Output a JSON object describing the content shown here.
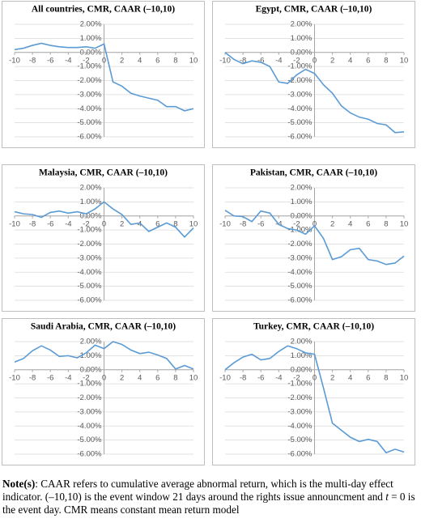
{
  "chart_data": [
    {
      "type": "line",
      "title": "All countries, CMR, CAAR (–10,10)",
      "color": "#5b9bd5",
      "x": [
        -10,
        -9,
        -8,
        -7,
        -6,
        -5,
        -4,
        -3,
        -2,
        -1,
        0,
        1,
        2,
        3,
        4,
        5,
        6,
        7,
        8,
        9,
        10
      ],
      "values": [
        0.2,
        0.3,
        0.5,
        0.65,
        0.5,
        0.4,
        0.35,
        0.35,
        0.4,
        0.3,
        0.6,
        -2.1,
        -2.4,
        -2.9,
        -3.1,
        -3.25,
        -3.4,
        -3.85,
        -3.85,
        -4.15,
        -4.0
      ],
      "xlim": [
        -10,
        10
      ],
      "xticks": [
        -10,
        -8,
        -6,
        -4,
        -2,
        0,
        2,
        4,
        6,
        8,
        10
      ],
      "ylim": [
        -6,
        2
      ],
      "yticks": [
        {
          "value": 2,
          "label": "2.00%"
        },
        {
          "value": 1,
          "label": "1.00%"
        },
        {
          "value": 0,
          "label": "0.00%"
        },
        {
          "value": -1,
          "label": "-1.00%"
        },
        {
          "value": -2,
          "label": "-2.00%"
        },
        {
          "value": -3,
          "label": "-3.00%"
        },
        {
          "value": -4,
          "label": "-4.00%"
        },
        {
          "value": -5,
          "label": "-5.00%"
        },
        {
          "value": -6,
          "label": "-6.00%"
        }
      ],
      "grid": true
    },
    {
      "type": "line",
      "title": "Egypt, CMR, CAAR (–10,10)",
      "color": "#5b9bd5",
      "x": [
        -10,
        -9,
        -8,
        -7,
        -6,
        -5,
        -4,
        -3,
        -2,
        -1,
        0,
        1,
        2,
        3,
        4,
        5,
        6,
        7,
        8,
        9,
        10
      ],
      "values": [
        0.0,
        -0.5,
        -0.8,
        -0.6,
        -0.7,
        -1.0,
        -2.1,
        -2.2,
        -1.6,
        -1.2,
        -1.5,
        -2.3,
        -2.9,
        -3.8,
        -4.3,
        -4.6,
        -4.75,
        -5.05,
        -5.15,
        -5.7,
        -5.65
      ],
      "xlim": [
        -10,
        10
      ],
      "xticks": [
        -10,
        -8,
        -6,
        -4,
        -2,
        0,
        2,
        4,
        6,
        8,
        10
      ],
      "ylim": [
        -6,
        2
      ],
      "yticks": [
        {
          "value": 2,
          "label": "2.00%"
        },
        {
          "value": 1,
          "label": "1.00%"
        },
        {
          "value": 0,
          "label": "0.00%"
        },
        {
          "value": -1,
          "label": "-1.00%"
        },
        {
          "value": -2,
          "label": "-2.00%"
        },
        {
          "value": -3,
          "label": "-3.00%"
        },
        {
          "value": -4,
          "label": "-4.00%"
        },
        {
          "value": -5,
          "label": "-5.00%"
        },
        {
          "value": -6,
          "label": "-6.00%"
        }
      ],
      "grid": true
    },
    {
      "type": "line",
      "title": "Malaysia, CMR, CAAR (–10,10)",
      "color": "#5b9bd5",
      "x": [
        -10,
        -9,
        -8,
        -7,
        -6,
        -5,
        -4,
        -3,
        -2,
        -1,
        0,
        1,
        2,
        3,
        4,
        5,
        6,
        7,
        8,
        9,
        10
      ],
      "values": [
        0.3,
        0.15,
        0.1,
        -0.1,
        0.25,
        0.35,
        0.2,
        0.3,
        0.15,
        0.5,
        1.0,
        0.5,
        0.1,
        -0.6,
        -0.5,
        -1.1,
        -0.8,
        -0.5,
        -0.8,
        -1.5,
        -0.85
      ],
      "xlim": [
        -10,
        10
      ],
      "xticks": [
        -10,
        -8,
        -6,
        -4,
        -2,
        0,
        2,
        4,
        6,
        8,
        10
      ],
      "ylim": [
        -6,
        2
      ],
      "yticks": [
        {
          "value": 2,
          "label": "2.00%"
        },
        {
          "value": 1,
          "label": "1.00%"
        },
        {
          "value": 0,
          "label": "0.00%"
        },
        {
          "value": -1,
          "label": "-1.00%"
        },
        {
          "value": -2,
          "label": "-2.00%"
        },
        {
          "value": -3,
          "label": "-3.00%"
        },
        {
          "value": -4,
          "label": "-4.00%"
        },
        {
          "value": -5,
          "label": "-5.00%"
        },
        {
          "value": -6,
          "label": "-6.00%"
        }
      ],
      "grid": true
    },
    {
      "type": "line",
      "title": "Pakistan, CMR, CAAR (–10,10)",
      "color": "#5b9bd5",
      "x": [
        -10,
        -9,
        -8,
        -7,
        -6,
        -5,
        -4,
        -3,
        -2,
        -1,
        0,
        1,
        2,
        3,
        4,
        5,
        6,
        7,
        8,
        9,
        10
      ],
      "values": [
        0.4,
        0.0,
        -0.05,
        -0.4,
        0.35,
        0.2,
        -0.6,
        -0.9,
        -1.0,
        -1.3,
        -0.7,
        -1.6,
        -3.1,
        -2.9,
        -2.4,
        -2.3,
        -3.1,
        -3.2,
        -3.45,
        -3.35,
        -2.85
      ],
      "xlim": [
        -10,
        10
      ],
      "xticks": [
        -10,
        -8,
        -6,
        -4,
        -2,
        0,
        2,
        4,
        6,
        8,
        10
      ],
      "ylim": [
        -6,
        2
      ],
      "yticks": [
        {
          "value": 2,
          "label": "2.00%"
        },
        {
          "value": 1,
          "label": "1.00%"
        },
        {
          "value": 0,
          "label": "0.00%"
        },
        {
          "value": -1,
          "label": "-1.00%"
        },
        {
          "value": -2,
          "label": "-2.00%"
        },
        {
          "value": -3,
          "label": "-3.00%"
        },
        {
          "value": -4,
          "label": "-4.00%"
        },
        {
          "value": -5,
          "label": "-5.00%"
        },
        {
          "value": -6,
          "label": "-6.00%"
        }
      ],
      "grid": true
    },
    {
      "type": "line",
      "title": "Saudi Arabia, CMR, CAAR (–10,10)",
      "color": "#5b9bd5",
      "x": [
        -10,
        -9,
        -8,
        -7,
        -6,
        -5,
        -4,
        -3,
        -2,
        -1,
        0,
        1,
        2,
        3,
        4,
        5,
        6,
        7,
        8,
        9,
        10
      ],
      "values": [
        0.55,
        0.8,
        1.35,
        1.7,
        1.4,
        0.95,
        1.0,
        0.85,
        1.2,
        1.75,
        1.5,
        2.0,
        1.8,
        1.4,
        1.15,
        1.25,
        1.05,
        0.8,
        0.05,
        0.3,
        0.05
      ],
      "xlim": [
        -10,
        10
      ],
      "xticks": [
        -10,
        -8,
        -6,
        -4,
        -2,
        0,
        2,
        4,
        6,
        8,
        10
      ],
      "ylim": [
        -6,
        2
      ],
      "yticks": [
        {
          "value": 2,
          "label": "2.00%"
        },
        {
          "value": 1,
          "label": "1.00%"
        },
        {
          "value": 0,
          "label": "0.00%"
        },
        {
          "value": -1,
          "label": "-1.00%"
        },
        {
          "value": -2,
          "label": "-2.00%"
        },
        {
          "value": -3,
          "label": "-3.00%"
        },
        {
          "value": -4,
          "label": "-4.00%"
        },
        {
          "value": -5,
          "label": "-5.00%"
        },
        {
          "value": -6,
          "label": "-6.00%"
        }
      ],
      "grid": true
    },
    {
      "type": "line",
      "title": "Turkey, CMR, CAAR (–10,10)",
      "color": "#5b9bd5",
      "x": [
        -10,
        -9,
        -8,
        -7,
        -6,
        -5,
        -4,
        -3,
        -2,
        -1,
        0,
        1,
        2,
        3,
        4,
        5,
        6,
        7,
        8,
        9,
        10
      ],
      "values": [
        0.0,
        0.5,
        0.9,
        1.1,
        0.7,
        0.8,
        1.3,
        1.7,
        1.5,
        1.2,
        1.1,
        -1.3,
        -3.8,
        -4.3,
        -4.8,
        -5.1,
        -4.95,
        -5.1,
        -5.9,
        -5.65,
        -5.85
      ],
      "xlim": [
        -10,
        10
      ],
      "xticks": [
        -10,
        -8,
        -6,
        -4,
        -2,
        0,
        2,
        4,
        6,
        8,
        10
      ],
      "ylim": [
        -6,
        2
      ],
      "yticks": [
        {
          "value": 2,
          "label": "2.00%"
        },
        {
          "value": 1,
          "label": "1.00%"
        },
        {
          "value": 0,
          "label": "0.00%"
        },
        {
          "value": -1,
          "label": "-1.00%"
        },
        {
          "value": -2,
          "label": "-2.00%"
        },
        {
          "value": -3,
          "label": "-3.00%"
        },
        {
          "value": -4,
          "label": "-4.00%"
        },
        {
          "value": -5,
          "label": "-5.00%"
        },
        {
          "value": -6,
          "label": "-6.00%"
        }
      ],
      "grid": true
    }
  ],
  "note": {
    "label": "Note(s)",
    "text1": ": CAAR refers to cumulative average abnormal return, which is the multi-day effect indicator. (–10,10) is the event window 21 days around the rights issue announcment and ",
    "t": "t",
    "text2": " = 0 is the event day. CMR means constant mean return model"
  }
}
